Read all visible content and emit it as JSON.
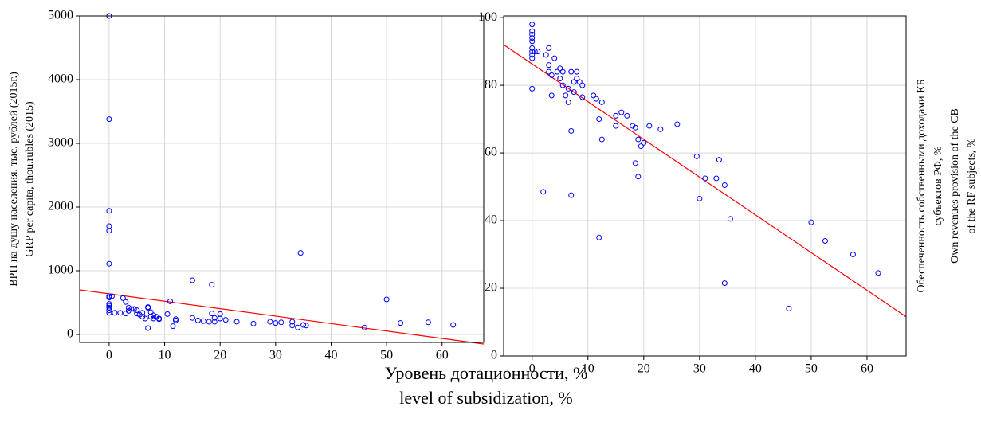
{
  "chart_data": [
    {
      "type": "scatter",
      "ylabel": [
        "ВРП на душу населения, тыс. рублей (2015г.)",
        "GRP per capita, thou.rubles (2015)"
      ],
      "ylabel_side": "left",
      "color": "#0000ff",
      "grid": true,
      "xlim": [
        -5.3,
        67.5
      ],
      "ylim": [
        -125,
        5000
      ],
      "xticks": [
        0,
        10,
        20,
        30,
        40,
        50,
        60
      ],
      "yticks": [
        0,
        1000,
        2000,
        3000,
        4000,
        5000
      ],
      "x": [
        0,
        0,
        0,
        0,
        0,
        0,
        0,
        0,
        0,
        0,
        0,
        0,
        0,
        0.5,
        1,
        2,
        2.5,
        3,
        3,
        3.5,
        3.5,
        4,
        4.5,
        5,
        5,
        5.5,
        6,
        6,
        6.5,
        7,
        7,
        7,
        7.5,
        7.5,
        8,
        8,
        8.5,
        9,
        9,
        10.5,
        11,
        11.5,
        12,
        12,
        15,
        15,
        16,
        17,
        18,
        18.5,
        18.5,
        19,
        19,
        20,
        20,
        21,
        23,
        26,
        29,
        30,
        31,
        33,
        33,
        34,
        34.5,
        35,
        35.5,
        46,
        50,
        52.5,
        57.5,
        62
      ],
      "y": [
        5000,
        3380,
        1940,
        1700,
        1630,
        1110,
        600,
        580,
        480,
        450,
        420,
        380,
        340,
        600,
        340,
        340,
        570,
        510,
        330,
        370,
        420,
        400,
        400,
        380,
        330,
        310,
        340,
        280,
        250,
        430,
        420,
        100,
        350,
        280,
        300,
        250,
        280,
        240,
        250,
        320,
        520,
        130,
        240,
        220,
        850,
        260,
        220,
        210,
        200,
        780,
        330,
        260,
        200,
        250,
        320,
        230,
        200,
        170,
        200,
        180,
        190,
        140,
        200,
        110,
        1280,
        150,
        140,
        110,
        550,
        180,
        190,
        150
      ],
      "trend_line": {
        "x": [
          -5.3,
          67.5
        ],
        "y": [
          700,
          -150
        ],
        "color": "#ff0000"
      }
    },
    {
      "type": "scatter",
      "ylabel": [
        "Обеспеченность собственными доходами КБ",
        "субъектов РФ, %",
        "Own revenues provision of the CB",
        "of the RF subjects, %"
      ],
      "ylabel_side": "right",
      "color": "#0000ff",
      "grid": true,
      "xlim": [
        -5.1,
        67
      ],
      "ylim": [
        0,
        100.5
      ],
      "xticks": [
        0,
        10,
        20,
        30,
        40,
        50,
        60
      ],
      "yticks": [
        0,
        20,
        40,
        60,
        80,
        100
      ],
      "x": [
        0,
        0,
        0,
        0,
        0,
        0,
        0,
        0,
        0,
        0,
        0.5,
        1,
        2,
        2.5,
        3,
        3,
        3,
        3.5,
        3.5,
        4,
        4.5,
        5,
        5,
        5.5,
        5.5,
        6,
        6.5,
        6.5,
        7,
        7,
        7,
        7.5,
        7.5,
        8,
        8,
        8.5,
        9,
        9,
        11,
        11.5,
        12,
        12,
        12.5,
        12.5,
        15,
        15,
        16,
        17,
        18,
        18.5,
        18.5,
        19,
        19,
        19.5,
        20,
        21,
        23,
        26,
        29.5,
        30,
        31,
        33,
        33.5,
        34.5,
        34.5,
        35.5,
        46,
        50,
        52.5,
        57.5,
        62
      ],
      "y": [
        98,
        96,
        95,
        94,
        93,
        91,
        90,
        89,
        88,
        79,
        90,
        90,
        48.5,
        89,
        91,
        86,
        84,
        83,
        77,
        88,
        84,
        85,
        82,
        80,
        84,
        77,
        75,
        79,
        66.5,
        47.5,
        84,
        81,
        78,
        84,
        82,
        81,
        80,
        76.5,
        77,
        76,
        70,
        35,
        64,
        75,
        71,
        68,
        72,
        71,
        68,
        67.5,
        57,
        53,
        64,
        62,
        63,
        68,
        67,
        68.5,
        59,
        46.5,
        52.5,
        52.5,
        58,
        50.5,
        21.5,
        40.5,
        14,
        39.5,
        34,
        30,
        24.5
      ],
      "trend_line": {
        "x": [
          -5.1,
          67
        ],
        "y": [
          92,
          11.6
        ],
        "color": "#ff0000"
      }
    }
  ],
  "xlabel": [
    "Уровень дотационности, %",
    "level of subsidization, %"
  ]
}
